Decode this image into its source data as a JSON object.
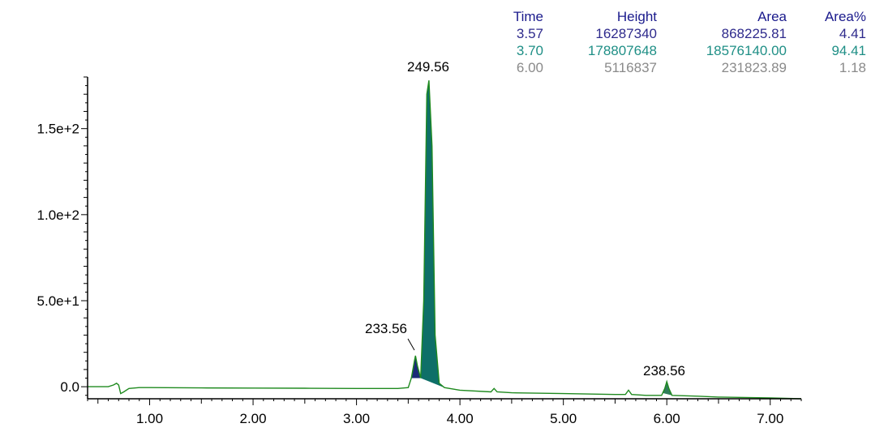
{
  "chart_data": {
    "type": "line",
    "title": "",
    "xlabel": "",
    "ylabel": "",
    "xlim": [
      0.4,
      7.3
    ],
    "ylim": [
      -7,
      180
    ],
    "x_ticks": [
      1.0,
      2.0,
      3.0,
      4.0,
      5.0,
      6.0,
      7.0
    ],
    "x_tick_labels": [
      "1.00",
      "2.00",
      "3.00",
      "4.00",
      "5.00",
      "6.00",
      "7.00"
    ],
    "y_ticks": [
      0,
      50,
      100,
      150
    ],
    "y_tick_labels": [
      "0.0",
      "5.0e+1",
      "1.0e+2",
      "1.5e+2"
    ],
    "grid": false,
    "line_color": "#1f8a1f",
    "series": [
      {
        "x": [
          0.4,
          0.6,
          0.65,
          0.68,
          0.7,
          0.72,
          0.75,
          0.8,
          0.9,
          1.0,
          1.5,
          2.0,
          2.5,
          3.0,
          3.4,
          3.5,
          3.53,
          3.56,
          3.57,
          3.59,
          3.62,
          3.65,
          3.68,
          3.7,
          3.73,
          3.76,
          3.8,
          3.85,
          4.0,
          4.3,
          4.33,
          4.36,
          4.5,
          5.0,
          5.5,
          5.6,
          5.63,
          5.66,
          5.8,
          5.95,
          5.98,
          6.0,
          6.02,
          6.05,
          6.3,
          6.5,
          7.0,
          7.3
        ],
        "y": [
          0,
          0,
          1,
          2,
          1,
          -4,
          -3,
          -1,
          -0.5,
          -0.5,
          -0.7,
          -0.8,
          -0.9,
          -1.0,
          -1.0,
          -0.5,
          5,
          15,
          18,
          12,
          5,
          50,
          170,
          178,
          140,
          30,
          2,
          -0.5,
          -2.0,
          -3.0,
          -1.0,
          -3.0,
          -3.5,
          -4.0,
          -4.5,
          -4.5,
          -2.0,
          -4.5,
          -5.0,
          -5.0,
          -1.0,
          3.0,
          -1.0,
          -5.0,
          -5.5,
          -6.0,
          -6.5,
          -7.0
        ]
      }
    ],
    "peaks": [
      {
        "time": "3.57",
        "height": "16287340",
        "area": "868225.81",
        "area_pct": "4.41",
        "label": "233.56",
        "color": "#2e2a8c",
        "fill": "#1b2a78",
        "x_start": 3.53,
        "x_end": 3.62
      },
      {
        "time": "3.70",
        "height": "178807648",
        "area": "18576140.00",
        "area_pct": "94.41",
        "label": "249.56",
        "color": "#1f8f86",
        "fill": "#0e6f68",
        "x_start": 3.62,
        "x_end": 3.85
      },
      {
        "time": "6.00",
        "height": "5116837",
        "area": "231823.89",
        "area_pct": "1.18",
        "label": "238.56",
        "color": "#8a8a8a",
        "fill": "#2f7d5a",
        "x_start": 5.96,
        "x_end": 6.05
      }
    ],
    "table_headers": [
      "Time",
      "Height",
      "Area",
      "Area%"
    ],
    "header_color": "#1a1a8c"
  }
}
